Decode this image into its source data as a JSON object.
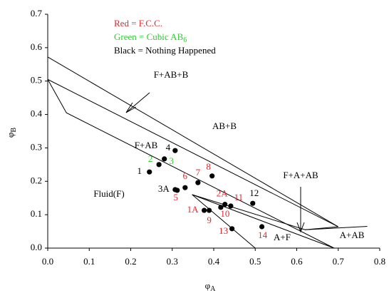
{
  "chart_data": {
    "type": "scatter",
    "xlabel": {
      "text": "φ",
      "sub": "A"
    },
    "ylabel": {
      "text": "φ",
      "sub": "B"
    },
    "legend": [
      {
        "text": "Red = F.C.C.",
        "color": "#e8262a"
      },
      {
        "text": "Green = Cubic AB",
        "sub": "6",
        "color": "#2ecc2e"
      },
      {
        "text": "Black = Nothing Happened",
        "color": "#000000"
      }
    ],
    "xlim": [
      0,
      0.8
    ],
    "ylim": [
      0,
      0.7
    ],
    "xticks": [
      {
        "value": 0,
        "label": "0.0"
      },
      {
        "value": 0.1,
        "label": "0.1"
      },
      {
        "value": 0.2,
        "label": "0.2"
      },
      {
        "value": 0.3,
        "label": "0.3"
      },
      {
        "value": 0.4,
        "label": "0.4"
      },
      {
        "value": 0.5,
        "label": "0.5"
      },
      {
        "value": 0.6,
        "label": "0.6"
      },
      {
        "value": 0.7,
        "label": "0.7"
      },
      {
        "value": 0.8,
        "label": "0.8"
      }
    ],
    "yticks": [
      {
        "value": 0,
        "label": "0.0"
      },
      {
        "value": 0.1,
        "label": "0.1"
      },
      {
        "value": 0.2,
        "label": "0.2"
      },
      {
        "value": 0.3,
        "label": "0.3"
      },
      {
        "value": 0.4,
        "label": "0.4"
      },
      {
        "value": 0.5,
        "label": "0.5"
      },
      {
        "value": 0.6,
        "label": "0.6"
      },
      {
        "value": 0.7,
        "label": "0.7"
      }
    ],
    "points": [
      {
        "label": "1",
        "x": 0.245,
        "y": 0.228,
        "color": "#000000"
      },
      {
        "label": "2",
        "x": 0.268,
        "y": 0.25,
        "color": "#2ecc2e"
      },
      {
        "label": "3",
        "x": 0.281,
        "y": 0.267,
        "color": "#2ecc2e"
      },
      {
        "label": "4",
        "x": 0.307,
        "y": 0.292,
        "color": "#000000"
      },
      {
        "label": "3A",
        "x": 0.307,
        "y": 0.175,
        "color": "#000000"
      },
      {
        "label": "5",
        "x": 0.312,
        "y": 0.173,
        "color": "#e8262a"
      },
      {
        "label": "6",
        "x": 0.331,
        "y": 0.181,
        "color": "#e8262a"
      },
      {
        "label": "7",
        "x": 0.362,
        "y": 0.196,
        "color": "#e8262a"
      },
      {
        "label": "8",
        "x": 0.396,
        "y": 0.216,
        "color": "#e8262a"
      },
      {
        "label": "1A",
        "x": 0.377,
        "y": 0.113,
        "color": "#e8262a"
      },
      {
        "label": "9",
        "x": 0.389,
        "y": 0.113,
        "color": "#e8262a"
      },
      {
        "label": "2A",
        "x": 0.427,
        "y": 0.131,
        "color": "#e8262a"
      },
      {
        "label": "10",
        "x": 0.417,
        "y": 0.122,
        "color": "#e8262a"
      },
      {
        "label": "11",
        "x": 0.441,
        "y": 0.126,
        "color": "#e8262a"
      },
      {
        "label": "12",
        "x": 0.494,
        "y": 0.134,
        "color": "#000000"
      },
      {
        "label": "13",
        "x": 0.444,
        "y": 0.058,
        "color": "#e8262a"
      },
      {
        "label": "14",
        "x": 0.516,
        "y": 0.064,
        "color": "#e8262a"
      }
    ],
    "boundaries": [
      {
        "x": [
          0,
          0.7
        ],
        "y": [
          0.572,
          0.064
        ]
      },
      {
        "x": [
          0,
          0.7
        ],
        "y": [
          0.505,
          0.064
        ]
      },
      {
        "x": [
          0,
          0.045,
          0.69
        ],
        "y": [
          0.505,
          0.405,
          0
        ]
      },
      {
        "x": [
          0.348,
          0.5
        ],
        "y": [
          0.16,
          0
        ]
      },
      {
        "x": [
          0.348,
          0.69
        ],
        "y": [
          0.16,
          0
        ]
      },
      {
        "x": [
          0.348,
          0.62,
          0.7
        ],
        "y": [
          0.16,
          0.055,
          0.064
        ]
      },
      {
        "x": [
          0.62,
          0.77,
          0.77
        ],
        "y": [
          0.055,
          0.065,
          0.065
        ]
      }
    ],
    "regions": [
      "F+AB+B",
      "AB+B",
      "F+AB",
      "Fluid(F)",
      "F+A+AB",
      "A+F",
      "A+AB"
    ]
  }
}
